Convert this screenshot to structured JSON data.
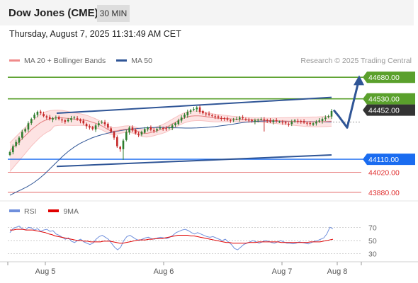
{
  "header": {
    "title": "Dow Jones (CME)",
    "timeframe": "30 MIN"
  },
  "timestamp": "Thursday, August 7, 2025 11:31:49 AM CET",
  "legend": {
    "items": [
      {
        "label": "MA 20 + Bollinger Bands",
        "color": "#f08a8a"
      },
      {
        "label": "MA 50",
        "color": "#2f5596"
      }
    ],
    "credit": "Research © 2025 Trading Central"
  },
  "rsi_legend": {
    "items": [
      {
        "label": "RSI",
        "color": "#6f8fdc"
      },
      {
        "label": "9MA",
        "color": "#e00000"
      }
    ]
  },
  "colors": {
    "green_level": "#5aa02c",
    "blue_level": "#1a6cf0",
    "red_level": "#e05050",
    "channel": "#2f5596",
    "last_price": "#333333",
    "candle_up": "#2e7d2e",
    "candle_down": "#c62828"
  },
  "chart_data": [
    {
      "type": "candlestick",
      "title": "Dow Jones (CME)",
      "timeframe": "30 MIN",
      "x_ticks": [
        "Aug 5",
        "Aug 6",
        "Aug 7",
        "Aug 8"
      ],
      "ylim": [
        43830,
        44750
      ],
      "levels": [
        {
          "value": 44680.0,
          "label": "44680.00",
          "kind": "resistance"
        },
        {
          "value": 44530.0,
          "label": "44530.00",
          "kind": "resistance"
        },
        {
          "value": 44452.0,
          "label": "44452.00",
          "kind": "last"
        },
        {
          "value": 44110.0,
          "label": "44110.00",
          "kind": "pivot"
        },
        {
          "value": 44020.0,
          "label": "44020.00",
          "kind": "support"
        },
        {
          "value": 43880.0,
          "label": "43880.00",
          "kind": "support"
        }
      ],
      "close_series": [
        44160,
        44200,
        44230,
        44260,
        44300,
        44320,
        44360,
        44390,
        44420,
        44440,
        44430,
        44410,
        44400,
        44390,
        44395,
        44400,
        44390,
        44380,
        44370,
        44385,
        44395,
        44400,
        44385,
        44375,
        44360,
        44340,
        44330,
        44320,
        44345,
        44360,
        44370,
        44355,
        44330,
        44300,
        44260,
        44200,
        44180,
        44240,
        44300,
        44330,
        44310,
        44290,
        44280,
        44300,
        44320,
        44330,
        44315,
        44310,
        44320,
        44330,
        44325,
        44320,
        44330,
        44345,
        44360,
        44380,
        44400,
        44420,
        44440,
        44450,
        44460,
        44470,
        44440,
        44430,
        44425,
        44420,
        44410,
        44405,
        44400,
        44395,
        44390,
        44385,
        44380,
        44385,
        44390,
        44400,
        44395,
        44385,
        44380,
        44375,
        44380,
        44385,
        44390,
        44380,
        44375,
        44370,
        44380,
        44375,
        44370,
        44365,
        44360,
        44355,
        44370,
        44380,
        44375,
        44370,
        44365,
        44360,
        44355,
        44360,
        44370,
        44380,
        44390,
        44400,
        44410,
        44445
      ],
      "ma20": [
        44170,
        44195,
        44220,
        44245,
        44270,
        44295,
        44320,
        44340,
        44360,
        44375,
        44385,
        44392,
        44396,
        44398,
        44398,
        44396,
        44393,
        44390,
        44388,
        44386,
        44383,
        44378,
        44370,
        44362,
        44352,
        44340,
        44325,
        44310,
        44305,
        44308,
        44314,
        44318,
        44320,
        44316,
        44310,
        44300,
        44292,
        44290,
        44295,
        44302,
        44310,
        44318,
        44328,
        44342,
        44356,
        44370,
        44384,
        44396,
        44405,
        44410,
        44412,
        44412,
        44410,
        44406,
        44402,
        44398,
        44396,
        44395,
        44393,
        44392,
        44390,
        44389,
        44388,
        44387,
        44386,
        44385,
        44384,
        44383,
        44382,
        44381,
        44380,
        44379,
        44378,
        44377,
        44376,
        44375,
        44374,
        44373,
        44372,
        44371,
        44370,
        44370,
        44370,
        44370,
        44371,
        44372,
        44373,
        44374
      ],
      "ma50": [
        43860,
        43880,
        43900,
        43920,
        43945,
        43975,
        44010,
        44050,
        44090,
        44130,
        44165,
        44195,
        44220,
        44240,
        44258,
        44272,
        44284,
        44294,
        44302,
        44310,
        44316,
        44321,
        44325,
        44328,
        44330,
        44331,
        44331,
        44330,
        44329,
        44328,
        44327,
        44327,
        44328,
        44330,
        44333,
        44337,
        44342,
        44347,
        44353,
        44360,
        44366,
        44370,
        44373,
        44375,
        44376,
        44376,
        44375,
        44374,
        44373,
        44372,
        44372,
        44371,
        44371,
        44371,
        44370,
        44370
      ],
      "channel": {
        "upper": [
          44430,
          44540
        ],
        "lower": [
          44060,
          44140
        ]
      },
      "forecast_path": [
        44452,
        44410,
        44330,
        44650
      ]
    },
    {
      "type": "line",
      "title": "RSI",
      "ylim": [
        20,
        80
      ],
      "y_ticks": [
        70,
        50,
        30
      ],
      "series": [
        {
          "name": "RSI",
          "values": [
            62,
            68,
            70,
            72,
            68,
            66,
            70,
            69,
            66,
            68,
            64,
            66,
            67,
            64,
            65,
            60,
            58,
            55,
            52,
            54,
            49,
            47,
            50,
            52,
            48,
            46,
            44,
            46,
            52,
            56,
            58,
            55,
            52,
            46,
            40,
            36,
            40,
            50,
            56,
            58,
            55,
            52,
            50,
            52,
            54,
            55,
            53,
            52,
            54,
            55,
            54,
            53,
            55,
            58,
            62,
            64,
            66,
            67,
            65,
            62,
            60,
            62,
            60,
            58,
            56,
            55,
            56,
            54,
            52,
            50,
            52,
            48,
            44,
            38,
            36,
            40,
            44,
            46,
            48,
            50,
            48,
            46,
            48,
            50,
            49,
            47,
            46,
            48,
            50,
            48,
            46,
            46,
            45,
            46,
            48,
            47,
            46,
            45,
            47,
            49,
            50,
            52,
            54,
            60,
            70,
            68
          ]
        },
        {
          "name": "9MA",
          "values": [
            66,
            66,
            67,
            67,
            67,
            66,
            66,
            66,
            65,
            64,
            63,
            62,
            60,
            59,
            57,
            56,
            55,
            54,
            53,
            52,
            51,
            50,
            50,
            49,
            49,
            48,
            48,
            48,
            48,
            49,
            49,
            49,
            48,
            47,
            46,
            46,
            47,
            48,
            49,
            50,
            51,
            51,
            51,
            52,
            52,
            53,
            53,
            53,
            54,
            55,
            56,
            57,
            58,
            58,
            58,
            58,
            57,
            57,
            56,
            55,
            54,
            53,
            52,
            51,
            50,
            49,
            48,
            47,
            47,
            46,
            46,
            46,
            46,
            46,
            47,
            47,
            47,
            48,
            48,
            48,
            48,
            48,
            48,
            48,
            47,
            47,
            47,
            47,
            47,
            47,
            47,
            47,
            47,
            48,
            48,
            48,
            48,
            49,
            50,
            51,
            52
          ]
        }
      ]
    }
  ]
}
